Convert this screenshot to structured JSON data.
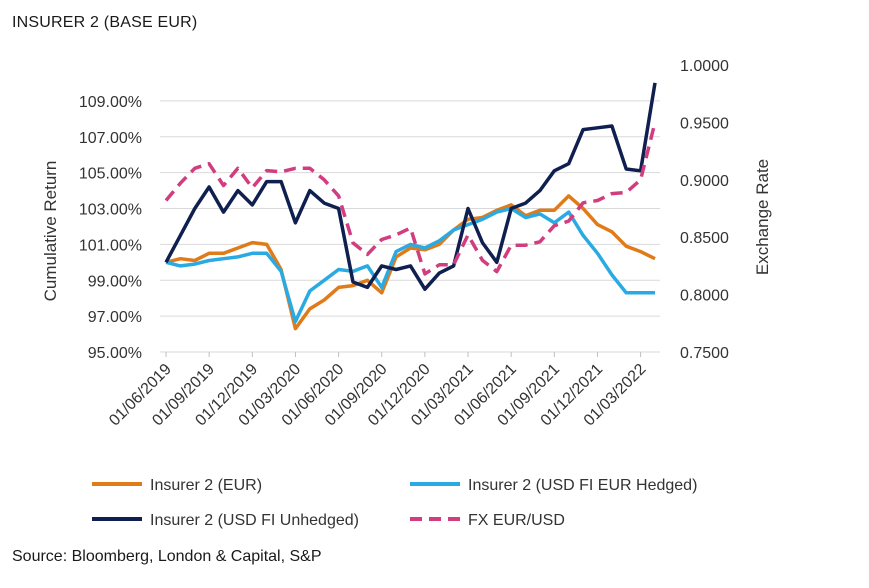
{
  "title": "INSURER 2 (BASE EUR)",
  "source": "Source: Bloomberg, London & Capital, S&P",
  "chart_data": {
    "type": "line",
    "title": "INSURER 2 (BASE EUR)",
    "ylabel": "Cumulative Return",
    "y2label": "Exchange Rate",
    "ylim": [
      95,
      111
    ],
    "y2lim": [
      0.75,
      1.0
    ],
    "yticks": [
      "95.00%",
      "97.00%",
      "99.00%",
      "101.00%",
      "103.00%",
      "105.00%",
      "107.00%",
      "109.00%"
    ],
    "y2ticks": [
      "0.7500",
      "0.8000",
      "0.8500",
      "0.9000",
      "0.9500",
      "1.0000"
    ],
    "xticks": [
      "01/06/2019",
      "01/09/2019",
      "01/12/2019",
      "01/03/2020",
      "01/06/2020",
      "01/09/2020",
      "01/12/2020",
      "01/03/2021",
      "01/06/2021",
      "01/09/2021",
      "01/12/2021",
      "01/03/2022"
    ],
    "grid": "horizontal",
    "legend_position": "bottom",
    "x": [
      "2019-06",
      "2019-07",
      "2019-08",
      "2019-09",
      "2019-10",
      "2019-11",
      "2019-12",
      "2020-01",
      "2020-02",
      "2020-03",
      "2020-04",
      "2020-05",
      "2020-06",
      "2020-07",
      "2020-08",
      "2020-09",
      "2020-10",
      "2020-11",
      "2020-12",
      "2021-01",
      "2021-02",
      "2021-03",
      "2021-04",
      "2021-05",
      "2021-06",
      "2021-07",
      "2021-08",
      "2021-09",
      "2021-10",
      "2021-11",
      "2021-12",
      "2022-01",
      "2022-02",
      "2022-03",
      "2022-04"
    ],
    "series": [
      {
        "name": "Insurer 2 (EUR)",
        "axis": "left",
        "color": "#e07b1a",
        "dash": false,
        "values": [
          100.0,
          100.2,
          100.1,
          100.5,
          100.5,
          100.8,
          101.1,
          101.0,
          99.6,
          96.3,
          97.4,
          97.9,
          98.6,
          98.7,
          99.0,
          98.3,
          100.3,
          100.8,
          100.7,
          101.0,
          101.8,
          102.4,
          102.5,
          102.9,
          103.2,
          102.6,
          102.9,
          102.9,
          103.7,
          103.0,
          102.1,
          101.7,
          100.9,
          100.6,
          100.2
        ]
      },
      {
        "name": "Insurer 2 (USD FI EUR Hedged)",
        "axis": "left",
        "color": "#2aaae2",
        "dash": false,
        "values": [
          100.0,
          99.8,
          99.9,
          100.1,
          100.2,
          100.3,
          100.5,
          100.5,
          99.5,
          96.7,
          98.4,
          99.0,
          99.6,
          99.5,
          99.8,
          98.6,
          100.6,
          101.0,
          100.8,
          101.2,
          101.8,
          102.1,
          102.4,
          102.8,
          103.0,
          102.5,
          102.7,
          102.2,
          102.8,
          101.5,
          100.5,
          99.3,
          98.3,
          98.3,
          98.3
        ]
      },
      {
        "name": "Insurer 2 (USD FI Unhedged)",
        "axis": "left",
        "color": "#0f1f4f",
        "dash": false,
        "values": [
          100.0,
          101.5,
          103.0,
          104.2,
          102.8,
          104.0,
          103.2,
          104.5,
          104.5,
          102.2,
          104.0,
          103.3,
          103.0,
          98.9,
          98.6,
          99.8,
          99.6,
          99.8,
          98.5,
          99.4,
          99.8,
          103.0,
          101.1,
          100.0,
          103.0,
          103.3,
          104.0,
          105.1,
          105.5,
          107.4,
          107.5,
          107.6,
          105.2,
          105.1,
          110.0
        ]
      },
      {
        "name": "FX EUR/USD",
        "axis": "right",
        "color": "#d23d7f",
        "dash": true,
        "values": [
          0.882,
          0.897,
          0.91,
          0.914,
          0.895,
          0.91,
          0.893,
          0.908,
          0.907,
          0.91,
          0.91,
          0.9,
          0.886,
          0.845,
          0.835,
          0.848,
          0.852,
          0.858,
          0.818,
          0.826,
          0.826,
          0.852,
          0.83,
          0.82,
          0.843,
          0.843,
          0.846,
          0.86,
          0.864,
          0.88,
          0.882,
          0.888,
          0.889,
          0.9,
          0.95
        ]
      }
    ]
  }
}
